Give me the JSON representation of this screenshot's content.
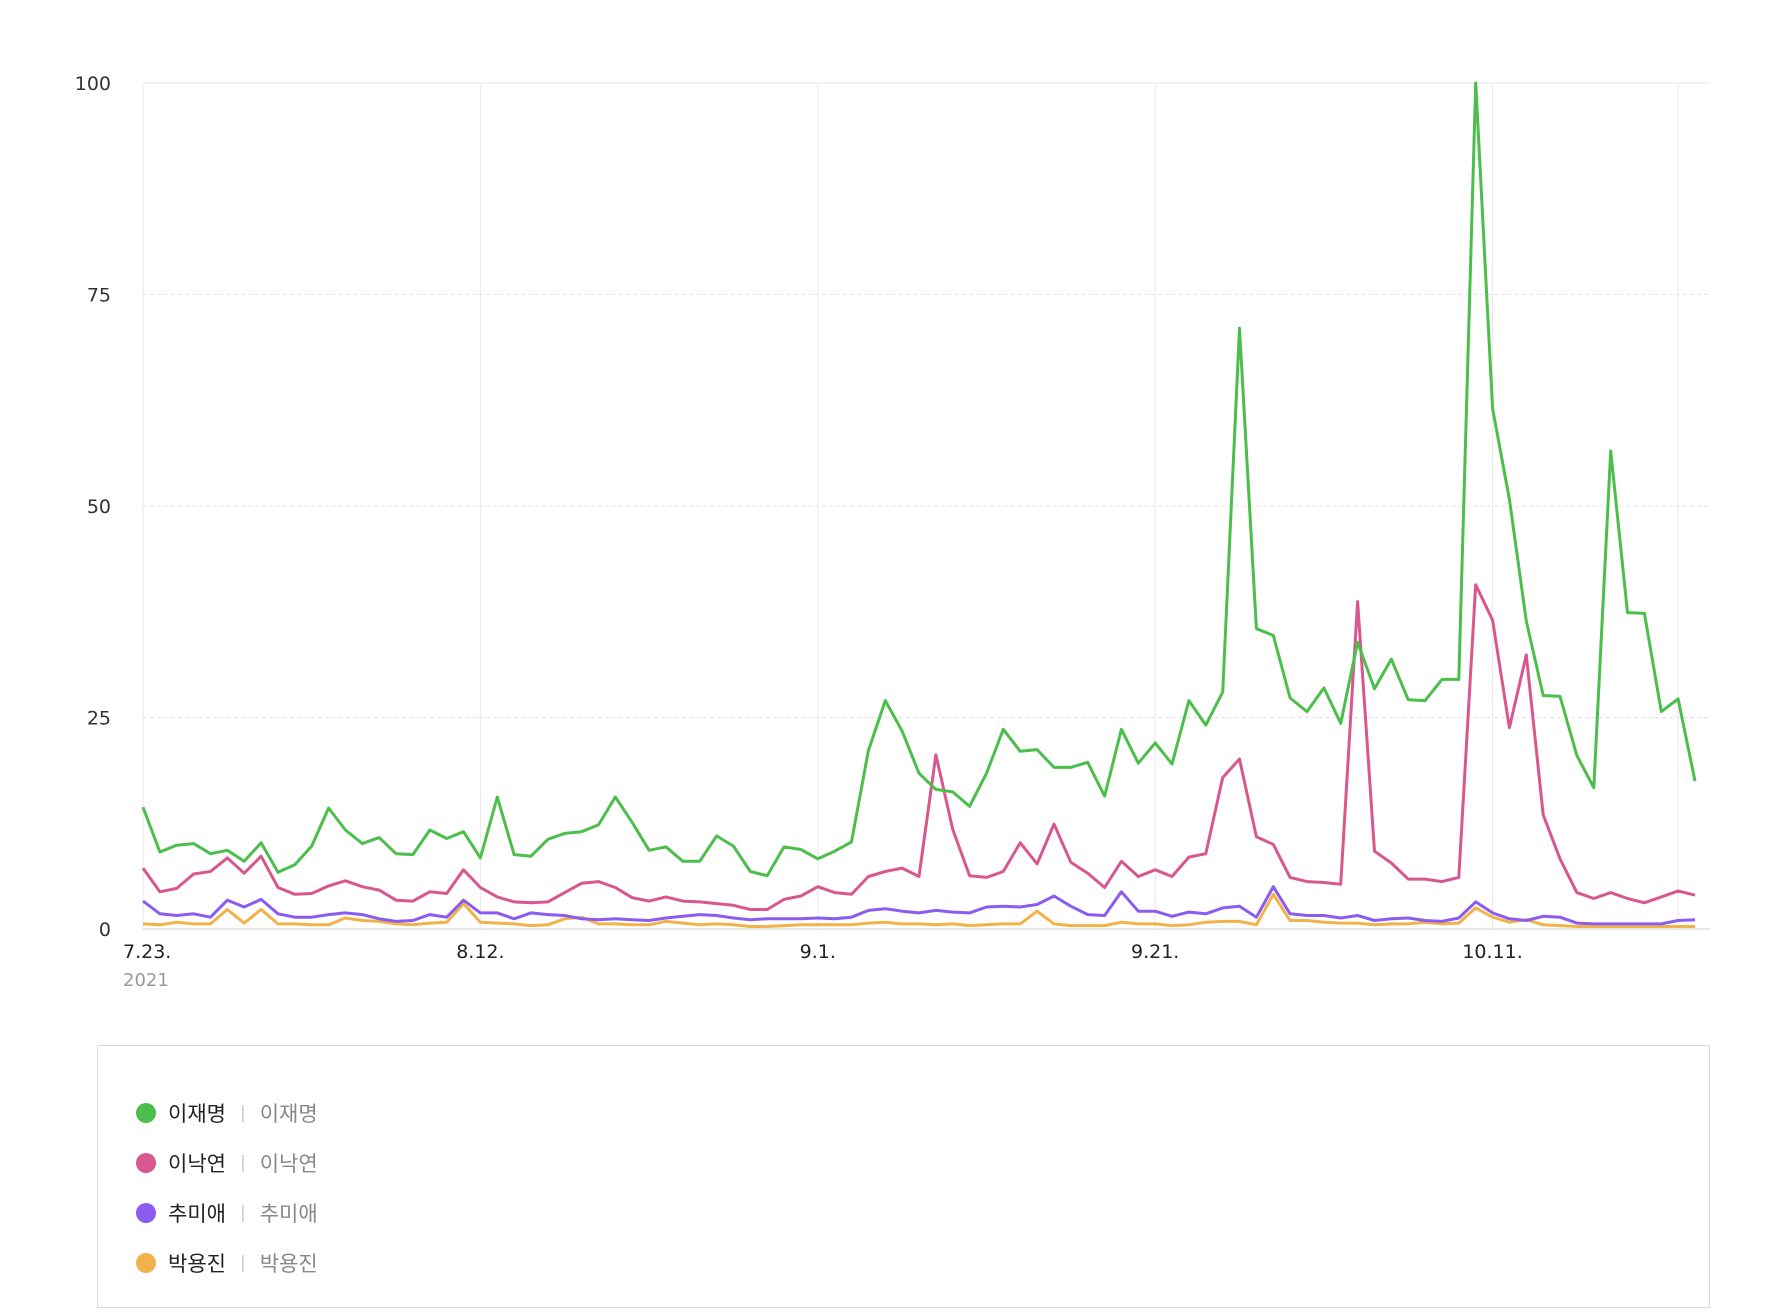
{
  "chart_data": {
    "type": "line",
    "ylim": [
      0,
      100
    ],
    "y_ticks": [
      "0",
      "25",
      "50",
      "75",
      "100"
    ],
    "x_tick_labels": [
      "7.23.",
      "8.12.",
      "9.1.",
      "9.21.",
      "10.11."
    ],
    "x_tick_indices": [
      0,
      20,
      40,
      60,
      80
    ],
    "x_start_year": "2021",
    "x_count": 93,
    "grid": true,
    "legend_position": "bottom",
    "series": [
      {
        "name": "이재명",
        "description": "이재명",
        "color": "#4cbe4c",
        "values": [
          14.4,
          9.1,
          9.9,
          10.1,
          8.9,
          9.3,
          8.0,
          10.2,
          6.7,
          7.6,
          9.8,
          14.3,
          11.7,
          10.1,
          10.8,
          8.9,
          8.8,
          11.7,
          10.7,
          11.5,
          8.4,
          15.6,
          8.8,
          8.6,
          10.6,
          11.3,
          11.5,
          12.3,
          15.6,
          12.6,
          9.3,
          9.7,
          8.0,
          8.0,
          11.0,
          9.8,
          6.8,
          6.3,
          9.7,
          9.4,
          8.3,
          9.2,
          10.3,
          21.1,
          27.0,
          23.4,
          18.4,
          16.5,
          16.2,
          14.5,
          18.4,
          23.6,
          21.0,
          21.2,
          19.1,
          19.1,
          19.7,
          15.7,
          23.6,
          19.6,
          22.0,
          19.5,
          27.0,
          24.1,
          28.0,
          71.0,
          35.5,
          34.7,
          27.3,
          25.7,
          28.5,
          24.3,
          33.9,
          28.4,
          31.9,
          27.1,
          27.0,
          29.5,
          29.5,
          100.0,
          61.5,
          50.8,
          36.4,
          27.6,
          27.5,
          20.5,
          16.7,
          56.5,
          37.4,
          37.3,
          25.7,
          27.2,
          17.5
        ]
      },
      {
        "name": "이낙연",
        "description": "이낙연",
        "color": "#d8578e",
        "values": [
          7.2,
          4.4,
          4.8,
          6.5,
          6.8,
          8.4,
          6.6,
          8.6,
          4.9,
          4.1,
          4.2,
          5.1,
          5.7,
          5.0,
          4.6,
          3.4,
          3.3,
          4.4,
          4.2,
          7.0,
          4.9,
          3.8,
          3.2,
          3.1,
          3.2,
          4.3,
          5.4,
          5.6,
          4.9,
          3.7,
          3.3,
          3.8,
          3.3,
          3.2,
          3.0,
          2.8,
          2.3,
          2.3,
          3.5,
          3.9,
          5.0,
          4.3,
          4.1,
          6.2,
          6.8,
          7.2,
          6.2,
          20.6,
          11.8,
          6.3,
          6.1,
          6.8,
          10.2,
          7.7,
          12.4,
          7.9,
          6.6,
          4.9,
          8.0,
          6.2,
          7.0,
          6.2,
          8.5,
          8.9,
          17.9,
          20.1,
          10.9,
          10.0,
          6.1,
          5.6,
          5.5,
          5.3,
          38.7,
          9.2,
          7.8,
          5.9,
          5.9,
          5.6,
          6.1,
          40.7,
          36.5,
          23.8,
          32.4,
          13.5,
          8.3,
          4.3,
          3.6,
          4.3,
          3.6,
          3.1,
          3.8,
          4.5,
          4.0
        ]
      },
      {
        "name": "추미애",
        "description": "추미애",
        "color": "#8a5cf0",
        "values": [
          3.3,
          1.8,
          1.6,
          1.8,
          1.4,
          3.4,
          2.6,
          3.5,
          1.8,
          1.4,
          1.4,
          1.7,
          1.9,
          1.7,
          1.2,
          0.9,
          1.0,
          1.7,
          1.4,
          3.4,
          1.9,
          1.9,
          1.2,
          1.9,
          1.7,
          1.6,
          1.2,
          1.1,
          1.2,
          1.1,
          1.0,
          1.3,
          1.5,
          1.7,
          1.6,
          1.3,
          1.1,
          1.2,
          1.2,
          1.2,
          1.3,
          1.2,
          1.4,
          2.2,
          2.4,
          2.1,
          1.9,
          2.2,
          2.0,
          1.9,
          2.6,
          2.7,
          2.6,
          2.9,
          3.9,
          2.7,
          1.7,
          1.6,
          4.4,
          2.1,
          2.1,
          1.5,
          2.0,
          1.8,
          2.5,
          2.7,
          1.4,
          5.0,
          1.8,
          1.6,
          1.6,
          1.3,
          1.6,
          1.0,
          1.2,
          1.3,
          1.0,
          0.9,
          1.3,
          3.2,
          1.9,
          1.2,
          1.0,
          1.5,
          1.4,
          0.7,
          0.6,
          0.6,
          0.6,
          0.6,
          0.6,
          1.0,
          1.1
        ]
      },
      {
        "name": "박용진",
        "description": "박용진",
        "color": "#f2b24a",
        "values": [
          0.6,
          0.5,
          0.8,
          0.6,
          0.6,
          2.3,
          0.7,
          2.3,
          0.6,
          0.6,
          0.5,
          0.5,
          1.3,
          1.0,
          0.9,
          0.6,
          0.5,
          0.7,
          0.8,
          3.0,
          0.8,
          0.7,
          0.6,
          0.4,
          0.5,
          1.2,
          1.4,
          0.6,
          0.6,
          0.5,
          0.5,
          0.9,
          0.7,
          0.5,
          0.6,
          0.5,
          0.3,
          0.3,
          0.4,
          0.5,
          0.5,
          0.5,
          0.5,
          0.7,
          0.8,
          0.6,
          0.6,
          0.5,
          0.6,
          0.4,
          0.5,
          0.6,
          0.6,
          2.1,
          0.6,
          0.4,
          0.4,
          0.4,
          0.8,
          0.6,
          0.6,
          0.4,
          0.5,
          0.8,
          0.9,
          0.9,
          0.5,
          4.1,
          1.0,
          1.0,
          0.8,
          0.7,
          0.7,
          0.5,
          0.6,
          0.6,
          0.8,
          0.6,
          0.7,
          2.5,
          1.4,
          0.8,
          1.1,
          0.5,
          0.4,
          0.3,
          0.3,
          0.3,
          0.3,
          0.3,
          0.3,
          0.3,
          0.3
        ]
      }
    ]
  }
}
